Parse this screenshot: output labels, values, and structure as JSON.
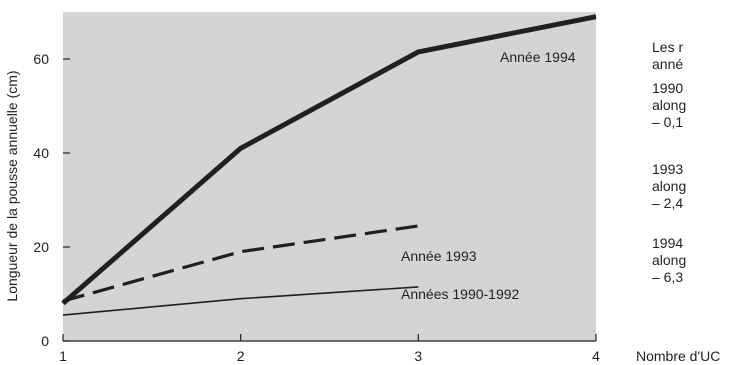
{
  "chart_data": {
    "type": "line",
    "ylabel": "Longueur de la pousse annuelle (cm)",
    "xlabel": "Nombre d'UC",
    "x": [
      1,
      2,
      3,
      4
    ],
    "xlim": [
      1,
      4
    ],
    "ylim": [
      0,
      70
    ],
    "xticks": [
      "1",
      "2",
      "3",
      "4"
    ],
    "yticks": [
      "0",
      "20",
      "40",
      "60"
    ],
    "grid": false,
    "background": "#d4d4d4",
    "series": [
      {
        "name": "Année 1994",
        "x": [
          1,
          2,
          3,
          4
        ],
        "values": [
          8,
          41,
          61.5,
          69
        ],
        "style": "thick-solid"
      },
      {
        "name": "Année 1993",
        "x": [
          1,
          2,
          3
        ],
        "values": [
          8.5,
          19,
          24.5
        ],
        "style": "dashed"
      },
      {
        "name": "Années 1990-1992",
        "x": [
          1,
          2,
          3
        ],
        "values": [
          5.5,
          9,
          11.5
        ],
        "style": "thin-solid"
      }
    ]
  },
  "side_text": {
    "intro_line1": "Les r",
    "intro_line2": "anné",
    "block_1990_l1": "1990",
    "block_1990_l2": "along",
    "block_1990_l3": "– 0,1",
    "block_1993_l1": "1993",
    "block_1993_l2": "along",
    "block_1993_l3": "– 2,4",
    "block_1994_l1": "1994",
    "block_1994_l2": "along",
    "block_1994_l3": "– 6,3"
  }
}
